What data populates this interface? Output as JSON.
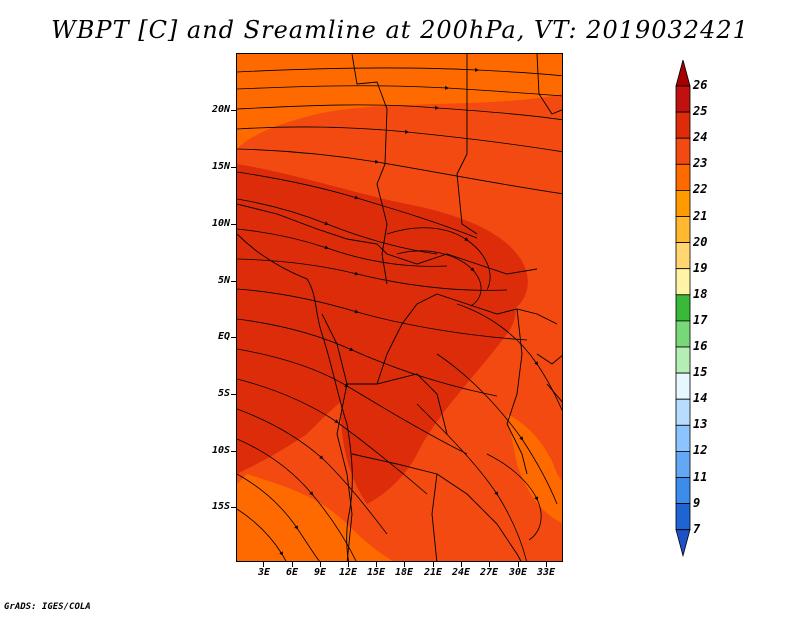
{
  "title": "WBPT [C] and Sreamline at 200hPa, VT: 2019032421",
  "footer": "GrADS: IGES/COLA",
  "map": {
    "lat_labels": [
      "20N",
      "15N",
      "10N",
      "5N",
      "EQ",
      "5S",
      "10S",
      "15S"
    ],
    "lat_values": [
      20,
      15,
      10,
      5,
      0,
      -5,
      -10,
      -15
    ],
    "lon_labels": [
      "3E",
      "6E",
      "9E",
      "12E",
      "15E",
      "18E",
      "21E",
      "24E",
      "27E",
      "30E",
      "33E"
    ],
    "lon_values": [
      3,
      6,
      9,
      12,
      15,
      18,
      21,
      24,
      27,
      30,
      33
    ],
    "fill_colors": {
      "c22": "#ff6a00",
      "c23": "#f24a10",
      "c24": "#dd2c0a"
    }
  },
  "colorbar": {
    "labels": [
      "26",
      "25",
      "24",
      "23",
      "22",
      "21",
      "20",
      "19",
      "18",
      "17",
      "16",
      "15",
      "14",
      "13",
      "12",
      "11",
      "9",
      "7"
    ],
    "colors": [
      "#a50000",
      "#c01010",
      "#dd2c0a",
      "#f24a10",
      "#ff6a00",
      "#ff9a00",
      "#ffb830",
      "#ffd670",
      "#fff4a6",
      "#39b839",
      "#78d878",
      "#b4eeb4",
      "#e6f7ff",
      "#b8dcff",
      "#8cc4ff",
      "#64a8f5",
      "#3c8ceb",
      "#1e64d2",
      "#1e50c8"
    ]
  }
}
